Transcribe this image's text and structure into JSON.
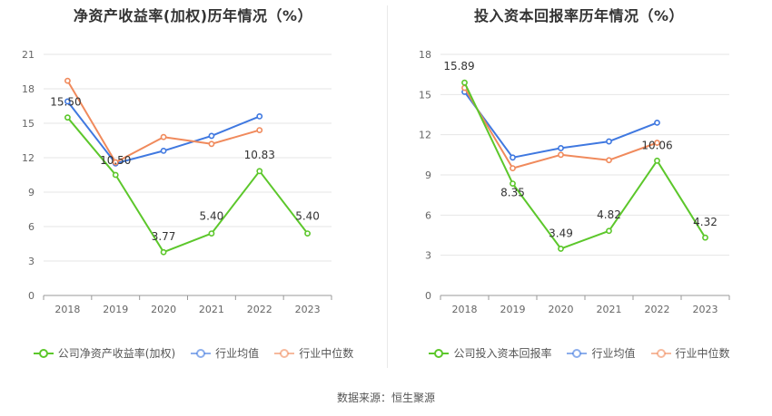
{
  "source_label": "数据来源：恒生聚源",
  "colors": {
    "company": "#5cc72b",
    "avg": "#3f78e0",
    "median": "#f08a5c"
  },
  "chart_data": [
    {
      "type": "line",
      "title": "净资产收益率(加权)历年情况（%）",
      "categories": [
        "2018",
        "2019",
        "2020",
        "2021",
        "2022",
        "2023"
      ],
      "ylim": [
        0,
        21
      ],
      "yticks": [
        0,
        3,
        6,
        9,
        12,
        15,
        18,
        21
      ],
      "grid": true,
      "legend_position": "bottom",
      "series": [
        {
          "name": "公司净资产收益率(加权)",
          "key": "company",
          "values": [
            15.5,
            10.5,
            3.77,
            5.4,
            10.83,
            5.4
          ],
          "labels": [
            "15.50",
            "10.50",
            "3.77",
            "5.40",
            "10.83",
            "5.40"
          ]
        },
        {
          "name": "行业均值",
          "key": "avg",
          "values": [
            16.9,
            11.5,
            12.6,
            13.9,
            15.6,
            null
          ]
        },
        {
          "name": "行业中位数",
          "key": "median",
          "values": [
            18.7,
            11.6,
            13.8,
            13.2,
            14.4,
            null
          ]
        }
      ]
    },
    {
      "type": "line",
      "title": "投入资本回报率历年情况（%）",
      "categories": [
        "2018",
        "2019",
        "2020",
        "2021",
        "2022",
        "2023"
      ],
      "ylim": [
        0,
        18
      ],
      "yticks": [
        0,
        3,
        6,
        9,
        12,
        15,
        18
      ],
      "grid": true,
      "legend_position": "bottom",
      "series": [
        {
          "name": "公司投入资本回报率",
          "key": "company",
          "values": [
            15.89,
            8.35,
            3.49,
            4.82,
            10.06,
            4.32
          ],
          "labels": [
            "15.89",
            "8.35",
            "3.49",
            "4.82",
            "10.06",
            "4.32"
          ]
        },
        {
          "name": "行业均值",
          "key": "avg",
          "values": [
            15.2,
            10.3,
            11.0,
            11.5,
            12.9,
            null
          ]
        },
        {
          "name": "行业中位数",
          "key": "median",
          "values": [
            15.5,
            9.5,
            10.5,
            10.1,
            11.4,
            null
          ]
        }
      ]
    }
  ]
}
